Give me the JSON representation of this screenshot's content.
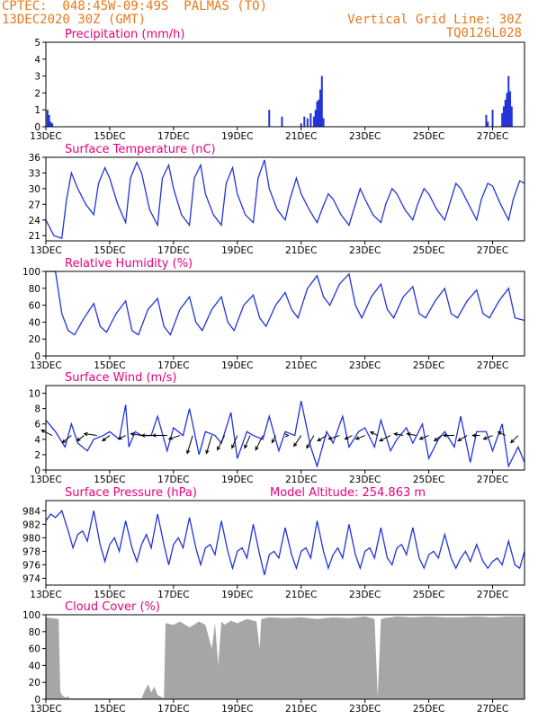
{
  "header": {
    "line1_left": "CPTEC:  048:45W-09:49S  PALMAS (TO)",
    "line2_left": "13DEC2020 30Z (GMT)",
    "line1_right": "Vertical Grid Line: 30Z",
    "line2_right": "TQ0126L028"
  },
  "colors": {
    "header": "#e8791c",
    "title": "#e6007e",
    "line": "#2233dd",
    "bars": "#2233dd",
    "cloud": "#a6a6a6",
    "axis": "#000000"
  },
  "x_axis": {
    "ticks": [
      "13DEC",
      "15DEC",
      "17DEC",
      "19DEC",
      "21DEC",
      "23DEC",
      "25DEC",
      "27DEC"
    ],
    "tick_days": [
      0,
      2,
      4,
      6,
      8,
      10,
      12,
      14
    ],
    "range_days": [
      0,
      15
    ]
  },
  "chart_data": [
    {
      "type": "bar",
      "title": "Precipitation (mm/h)",
      "ylim": [
        0,
        5
      ],
      "yticks": [
        "0",
        "1",
        "2",
        "3",
        "4",
        "5"
      ],
      "x": [
        0.05,
        0.1,
        0.15,
        0.2,
        7.0,
        7.4,
        8.0,
        8.1,
        8.2,
        8.3,
        8.4,
        8.45,
        8.5,
        8.55,
        8.6,
        8.65,
        8.7,
        13.8,
        13.85,
        14.0,
        14.3,
        14.35,
        14.4,
        14.45,
        14.5,
        14.55,
        14.6
      ],
      "values": [
        1.0,
        0.7,
        0.3,
        0.2,
        1.0,
        0.6,
        0.2,
        0.6,
        0.5,
        0.8,
        0.6,
        1.0,
        1.5,
        1.6,
        2.2,
        3.0,
        0.5,
        0.7,
        0.3,
        1.0,
        0.8,
        1.2,
        1.6,
        2.0,
        3.0,
        2.1,
        1.2
      ]
    },
    {
      "type": "line",
      "title": "Surface Temperature (nC)",
      "ylim": [
        20,
        36
      ],
      "yticks": [
        "21",
        "24",
        "27",
        "30",
        "33",
        "36"
      ],
      "x": [
        0,
        0.25,
        0.5,
        0.65,
        0.8,
        1.0,
        1.25,
        1.5,
        1.65,
        1.85,
        2.0,
        2.25,
        2.5,
        2.65,
        2.85,
        3.0,
        3.25,
        3.5,
        3.65,
        3.85,
        4.0,
        4.25,
        4.5,
        4.65,
        4.85,
        5.0,
        5.25,
        5.5,
        5.65,
        5.85,
        6.0,
        6.25,
        6.5,
        6.65,
        6.85,
        7.0,
        7.25,
        7.5,
        7.65,
        7.85,
        8.0,
        8.25,
        8.5,
        8.65,
        8.85,
        9.0,
        9.25,
        9.5,
        9.65,
        9.85,
        10.0,
        10.25,
        10.5,
        10.65,
        10.85,
        11.0,
        11.25,
        11.5,
        11.65,
        11.85,
        12.0,
        12.25,
        12.5,
        12.65,
        12.85,
        13.0,
        13.25,
        13.5,
        13.65,
        13.85,
        14.0,
        14.25,
        14.5,
        14.65,
        14.85,
        15.0
      ],
      "values": [
        24,
        21,
        20.5,
        28,
        33,
        30,
        27,
        25,
        31,
        34,
        32,
        27,
        23.5,
        32,
        35,
        33,
        26,
        23,
        32,
        34.5,
        30,
        25,
        23,
        32,
        34.5,
        29,
        25,
        23,
        31,
        34,
        29,
        25,
        23.5,
        32,
        35.5,
        30,
        26,
        24,
        28,
        32,
        29,
        26,
        23.5,
        26,
        29,
        28,
        25,
        23,
        26,
        30,
        28,
        25,
        23.5,
        27,
        30,
        29,
        26,
        24,
        27,
        30,
        29,
        26,
        24,
        27,
        31,
        30,
        27,
        24,
        28,
        31,
        30.5,
        27,
        24,
        28,
        31.5,
        31
      ]
    },
    {
      "type": "line",
      "title": "Relative Humidity (%)",
      "ylim": [
        0,
        100
      ],
      "yticks": [
        "0",
        "20",
        "40",
        "60",
        "80",
        "100"
      ],
      "x": [
        0,
        0.3,
        0.5,
        0.7,
        0.9,
        1.2,
        1.5,
        1.7,
        1.9,
        2.2,
        2.5,
        2.7,
        2.9,
        3.2,
        3.5,
        3.7,
        3.9,
        4.2,
        4.5,
        4.7,
        4.9,
        5.2,
        5.5,
        5.7,
        5.9,
        6.2,
        6.5,
        6.7,
        6.9,
        7.2,
        7.5,
        7.7,
        7.9,
        8.2,
        8.5,
        8.7,
        8.9,
        9.2,
        9.5,
        9.7,
        9.9,
        10.2,
        10.5,
        10.7,
        10.9,
        11.2,
        11.5,
        11.7,
        11.9,
        12.2,
        12.5,
        12.7,
        12.9,
        13.2,
        13.5,
        13.7,
        13.9,
        14.2,
        14.5,
        14.7,
        15.0
      ],
      "values": [
        100,
        100,
        50,
        30,
        25,
        45,
        62,
        35,
        28,
        50,
        65,
        30,
        25,
        55,
        68,
        35,
        25,
        55,
        70,
        40,
        30,
        55,
        70,
        40,
        30,
        60,
        72,
        45,
        35,
        60,
        75,
        55,
        45,
        80,
        95,
        70,
        60,
        85,
        97,
        60,
        45,
        70,
        85,
        55,
        45,
        70,
        82,
        50,
        45,
        65,
        80,
        50,
        45,
        65,
        78,
        50,
        45,
        65,
        80,
        45,
        42
      ]
    },
    {
      "type": "line",
      "title": "Surface Wind (m/s)",
      "ylim": [
        0,
        11
      ],
      "yticks": [
        "0",
        "2",
        "4",
        "6",
        "8",
        "10"
      ],
      "x": [
        0,
        0.3,
        0.6,
        0.8,
        1.0,
        1.3,
        1.5,
        1.8,
        2.0,
        2.3,
        2.5,
        2.6,
        2.8,
        3.0,
        3.3,
        3.5,
        3.8,
        4.0,
        4.3,
        4.5,
        4.8,
        5.0,
        5.3,
        5.5,
        5.8,
        6.0,
        6.3,
        6.5,
        6.8,
        7.0,
        7.3,
        7.5,
        7.8,
        8.0,
        8.3,
        8.5,
        8.8,
        9.0,
        9.3,
        9.5,
        9.8,
        10.0,
        10.3,
        10.5,
        10.8,
        11.0,
        11.3,
        11.5,
        11.8,
        12.0,
        12.3,
        12.5,
        12.8,
        13.0,
        13.3,
        13.5,
        13.8,
        14.0,
        14.3,
        14.5,
        14.8,
        15.0
      ],
      "values": [
        6.5,
        5.0,
        3.0,
        6.0,
        3.5,
        2.5,
        4.0,
        4.5,
        5.0,
        4.0,
        8.5,
        3.0,
        5.0,
        4.5,
        4.5,
        7.0,
        2.5,
        5.5,
        4.5,
        8.0,
        2.0,
        5.0,
        4.5,
        3.5,
        7.5,
        1.5,
        5.0,
        4.5,
        4.0,
        7.0,
        2.5,
        5.0,
        4.5,
        9.0,
        3.0,
        0.5,
        5.0,
        3.5,
        7.0,
        3.0,
        5.0,
        5.5,
        3.0,
        6.5,
        2.5,
        4.0,
        5.5,
        3.5,
        6.0,
        1.5,
        4.0,
        5.0,
        3.0,
        7.0,
        1.0,
        5.0,
        5.0,
        2.5,
        6.0,
        0.5,
        3.0,
        1.0
      ],
      "arrows": {
        "x": [
          0.2,
          0.8,
          1.2,
          1.6,
          2.0,
          2.5,
          3.0,
          3.4,
          3.8,
          4.2,
          4.6,
          5.2,
          5.6,
          6.0,
          6.4,
          6.8,
          7.2,
          7.6,
          8.0,
          8.4,
          8.8,
          9.2,
          9.6,
          10.0,
          10.4,
          10.8,
          11.2,
          11.6,
          12.0,
          12.4,
          12.8,
          13.2,
          13.6,
          14.0,
          14.4,
          14.8
        ],
        "u": [
          -3,
          -2.5,
          -2,
          -3.5,
          -2,
          -2,
          -3,
          -3.5,
          -4,
          -3,
          -1.5,
          -1.5,
          -2,
          -1.5,
          -1.5,
          -2,
          -1,
          0,
          -2,
          -2,
          -2.5,
          -3,
          -2,
          -2.5,
          -2,
          -3,
          -2.5,
          -2.5,
          -2.5,
          -2,
          -3,
          -2.5,
          -2,
          -2.5,
          -2,
          -2
        ],
        "v": [
          1.5,
          -2,
          -1.5,
          0.5,
          -1.5,
          -1,
          0.5,
          0,
          0,
          -1,
          -5,
          -5,
          -4,
          -3.5,
          -3.5,
          -4,
          -2,
          0,
          -3,
          -3.5,
          -1.5,
          -1,
          -1,
          -1,
          1,
          -1.5,
          0.5,
          0.5,
          -1,
          -1.5,
          0,
          -1.5,
          0,
          -1,
          1,
          -2
        ]
      }
    },
    {
      "type": "line",
      "title": "Surface Pressure (hPa)",
      "subtitle": "Model Altitude: 254.863 m",
      "ylim": [
        973,
        985.5
      ],
      "yticks": [
        "974",
        "976",
        "978",
        "980",
        "982",
        "984"
      ],
      "x": [
        0,
        0.15,
        0.3,
        0.5,
        0.7,
        0.85,
        1.0,
        1.15,
        1.3,
        1.5,
        1.7,
        1.85,
        2.0,
        2.15,
        2.3,
        2.5,
        2.7,
        2.85,
        3.0,
        3.15,
        3.3,
        3.5,
        3.7,
        3.85,
        4.0,
        4.15,
        4.3,
        4.5,
        4.7,
        4.85,
        5.0,
        5.15,
        5.3,
        5.5,
        5.7,
        5.85,
        6.0,
        6.15,
        6.3,
        6.5,
        6.7,
        6.85,
        7.0,
        7.15,
        7.3,
        7.5,
        7.7,
        7.85,
        8.0,
        8.15,
        8.3,
        8.5,
        8.7,
        8.85,
        9.0,
        9.15,
        9.3,
        9.5,
        9.7,
        9.85,
        10.0,
        10.15,
        10.3,
        10.5,
        10.7,
        10.85,
        11.0,
        11.15,
        11.3,
        11.5,
        11.7,
        11.85,
        12.0,
        12.15,
        12.3,
        12.5,
        12.7,
        12.85,
        13.0,
        13.15,
        13.3,
        13.5,
        13.7,
        13.85,
        14.0,
        14.15,
        14.3,
        14.5,
        14.7,
        14.85,
        15.0
      ],
      "values": [
        982.5,
        983.5,
        983.0,
        984.0,
        981.0,
        978.5,
        980.5,
        981.0,
        979.5,
        984.0,
        979.0,
        976.5,
        979.0,
        980.0,
        978.0,
        982.5,
        978.5,
        976.5,
        979.0,
        980.5,
        978.5,
        983.5,
        979.0,
        976.0,
        979.0,
        980.0,
        978.5,
        983.0,
        978.5,
        976.0,
        978.5,
        979.0,
        977.5,
        982.5,
        978.0,
        975.5,
        978.0,
        978.5,
        977.0,
        982.0,
        977.5,
        974.5,
        977.5,
        978.0,
        977.0,
        981.5,
        977.5,
        975.5,
        978.0,
        978.5,
        977.0,
        982.5,
        978.0,
        975.5,
        977.5,
        978.5,
        977.0,
        982.0,
        977.5,
        975.5,
        978.0,
        978.5,
        977.0,
        981.5,
        977.0,
        976.0,
        978.5,
        979.0,
        977.5,
        981.5,
        977.0,
        975.5,
        977.5,
        978.0,
        977.0,
        980.5,
        977.0,
        975.5,
        977.0,
        978.0,
        976.5,
        979.0,
        976.5,
        975.5,
        976.5,
        977.0,
        976.0,
        979.5,
        976.0,
        975.5,
        978.0
      ]
    },
    {
      "type": "area",
      "title": "Cloud Cover (%)",
      "ylim": [
        0,
        100
      ],
      "yticks": [
        "0",
        "20",
        "40",
        "60",
        "80",
        "100"
      ],
      "x": [
        0,
        0.4,
        0.45,
        0.5,
        0.6,
        0.7,
        0.75,
        3.0,
        3.1,
        3.2,
        3.3,
        3.4,
        3.5,
        3.6,
        3.7,
        3.75,
        4.0,
        4.2,
        4.5,
        4.8,
        5.0,
        5.2,
        5.3,
        5.4,
        5.5,
        5.6,
        5.8,
        6.0,
        6.3,
        6.6,
        6.7,
        6.75,
        7.0,
        7.5,
        8.0,
        8.5,
        9.0,
        9.5,
        10.0,
        10.3,
        10.4,
        10.5,
        10.6,
        10.8,
        11.0,
        11.5,
        12.0,
        12.5,
        13.0,
        13.5,
        14.0,
        14.5,
        15.0
      ],
      "values": [
        97,
        95,
        10,
        5,
        2,
        3,
        1,
        1,
        10,
        18,
        8,
        15,
        5,
        3,
        1,
        90,
        88,
        92,
        85,
        92,
        88,
        60,
        90,
        40,
        92,
        88,
        93,
        90,
        95,
        92,
        60,
        95,
        97,
        96,
        97,
        95,
        97,
        96,
        98,
        95,
        3,
        95,
        96,
        97,
        98,
        97,
        98,
        97,
        97,
        98,
        97,
        98,
        98
      ]
    }
  ]
}
